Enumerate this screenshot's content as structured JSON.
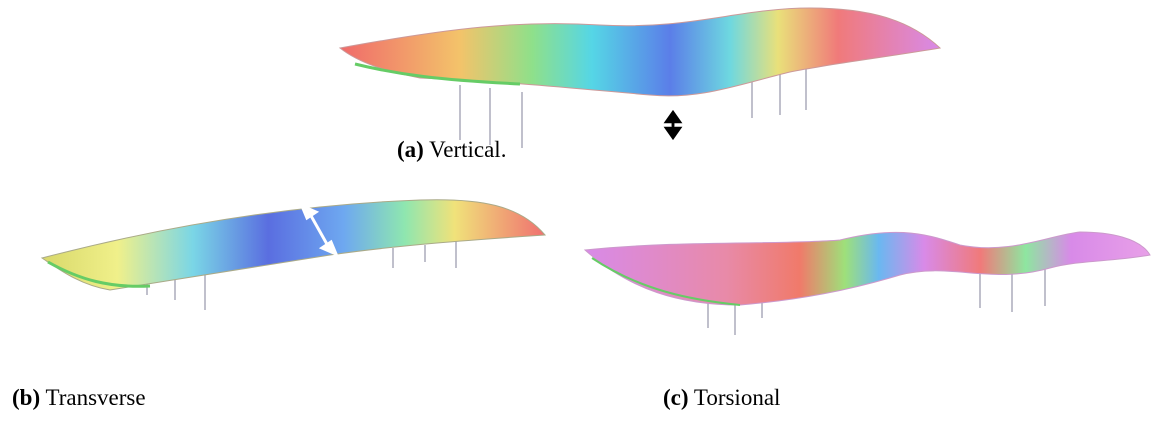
{
  "panels": [
    {
      "label": "(a)",
      "text": "Vertical."
    },
    {
      "label": "(b)",
      "text": "Transverse"
    },
    {
      "label": "(c)",
      "text": "Torsional"
    }
  ]
}
